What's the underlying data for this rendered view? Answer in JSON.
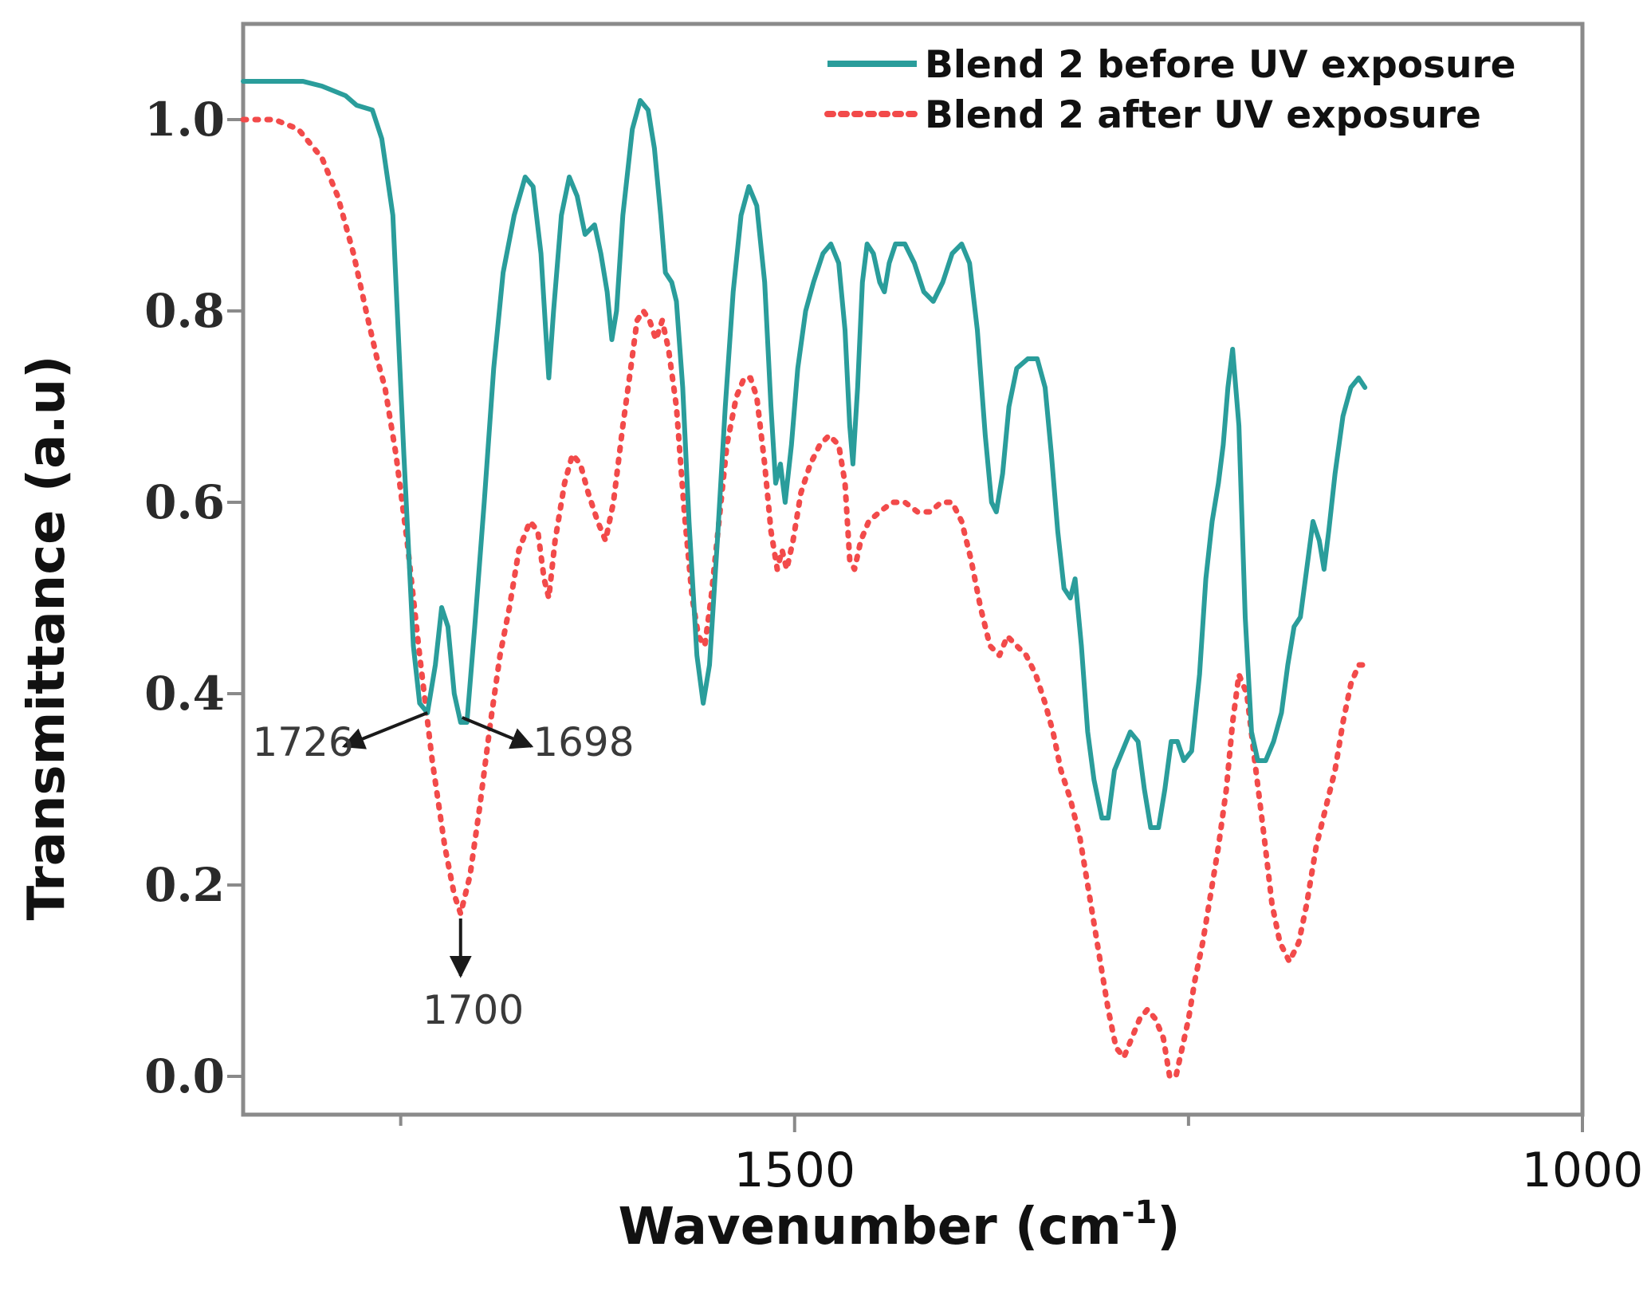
{
  "chart_data": {
    "type": "line",
    "xlabel": "Wavenumber (cm",
    "xlabel_sup": "-1",
    "xlabel_close": ")",
    "ylabel": "Transmittance (a.u)",
    "xlim": [
      1850,
      1000
    ],
    "ylim": [
      -0.04,
      1.1
    ],
    "x_reversed": true,
    "x_ticks": [
      {
        "value": 1500,
        "label": "1500"
      },
      {
        "value": 1000,
        "label": "1000"
      }
    ],
    "x_minor_ticks": [
      1750,
      1250
    ],
    "y_ticks": [
      {
        "value": 0.0,
        "label": "0.0"
      },
      {
        "value": 0.2,
        "label": "0.2"
      },
      {
        "value": 0.4,
        "label": "0.4"
      },
      {
        "value": 0.6,
        "label": "0.6"
      },
      {
        "value": 0.8,
        "label": "0.8"
      },
      {
        "value": 1.0,
        "label": "1.0"
      }
    ],
    "legend_position": "top-right",
    "series": [
      {
        "name": "Blend 2 before UV exposure",
        "color": "#2a9d9b",
        "style": "solid",
        "points": [
          [
            1850,
            1.04
          ],
          [
            1830,
            1.04
          ],
          [
            1812,
            1.04
          ],
          [
            1800,
            1.035
          ],
          [
            1785,
            1.025
          ],
          [
            1778,
            1.015
          ],
          [
            1768,
            1.01
          ],
          [
            1762,
            0.98
          ],
          [
            1755,
            0.9
          ],
          [
            1748,
            0.65
          ],
          [
            1742,
            0.45
          ],
          [
            1738,
            0.39
          ],
          [
            1733,
            0.38
          ],
          [
            1728,
            0.43
          ],
          [
            1724,
            0.49
          ],
          [
            1720,
            0.47
          ],
          [
            1716,
            0.4
          ],
          [
            1712,
            0.37
          ],
          [
            1708,
            0.37
          ],
          [
            1703,
            0.47
          ],
          [
            1697,
            0.6
          ],
          [
            1691,
            0.74
          ],
          [
            1685,
            0.84
          ],
          [
            1678,
            0.9
          ],
          [
            1671,
            0.94
          ],
          [
            1666,
            0.93
          ],
          [
            1661,
            0.86
          ],
          [
            1658,
            0.78
          ],
          [
            1656,
            0.73
          ],
          [
            1653,
            0.8
          ],
          [
            1648,
            0.9
          ],
          [
            1643,
            0.94
          ],
          [
            1638,
            0.92
          ],
          [
            1633,
            0.88
          ],
          [
            1627,
            0.89
          ],
          [
            1623,
            0.86
          ],
          [
            1619,
            0.82
          ],
          [
            1616,
            0.77
          ],
          [
            1613,
            0.8
          ],
          [
            1609,
            0.9
          ],
          [
            1603,
            0.99
          ],
          [
            1598,
            1.02
          ],
          [
            1593,
            1.01
          ],
          [
            1589,
            0.97
          ],
          [
            1585,
            0.9
          ],
          [
            1582,
            0.84
          ],
          [
            1578,
            0.83
          ],
          [
            1575,
            0.81
          ],
          [
            1571,
            0.72
          ],
          [
            1567,
            0.58
          ],
          [
            1562,
            0.44
          ],
          [
            1558,
            0.39
          ],
          [
            1554,
            0.43
          ],
          [
            1549,
            0.56
          ],
          [
            1544,
            0.7
          ],
          [
            1539,
            0.82
          ],
          [
            1534,
            0.9
          ],
          [
            1529,
            0.93
          ],
          [
            1524,
            0.91
          ],
          [
            1519,
            0.83
          ],
          [
            1515,
            0.7
          ],
          [
            1512,
            0.62
          ],
          [
            1509,
            0.64
          ],
          [
            1506,
            0.6
          ],
          [
            1502,
            0.66
          ],
          [
            1498,
            0.74
          ],
          [
            1493,
            0.8
          ],
          [
            1488,
            0.83
          ],
          [
            1482,
            0.86
          ],
          [
            1477,
            0.87
          ],
          [
            1472,
            0.85
          ],
          [
            1468,
            0.78
          ],
          [
            1465,
            0.68
          ],
          [
            1463,
            0.64
          ],
          [
            1460,
            0.72
          ],
          [
            1457,
            0.83
          ],
          [
            1454,
            0.87
          ],
          [
            1450,
            0.86
          ],
          [
            1446,
            0.83
          ],
          [
            1443,
            0.82
          ],
          [
            1440,
            0.85
          ],
          [
            1436,
            0.87
          ],
          [
            1430,
            0.87
          ],
          [
            1424,
            0.85
          ],
          [
            1418,
            0.82
          ],
          [
            1412,
            0.81
          ],
          [
            1406,
            0.83
          ],
          [
            1400,
            0.86
          ],
          [
            1394,
            0.87
          ],
          [
            1389,
            0.85
          ],
          [
            1384,
            0.78
          ],
          [
            1379,
            0.67
          ],
          [
            1375,
            0.6
          ],
          [
            1372,
            0.59
          ],
          [
            1368,
            0.63
          ],
          [
            1364,
            0.7
          ],
          [
            1359,
            0.74
          ],
          [
            1352,
            0.75
          ],
          [
            1346,
            0.75
          ],
          [
            1341,
            0.72
          ],
          [
            1337,
            0.65
          ],
          [
            1333,
            0.57
          ],
          [
            1329,
            0.51
          ],
          [
            1325,
            0.5
          ],
          [
            1322,
            0.52
          ],
          [
            1318,
            0.45
          ],
          [
            1314,
            0.36
          ],
          [
            1310,
            0.31
          ],
          [
            1305,
            0.27
          ],
          [
            1301,
            0.27
          ],
          [
            1297,
            0.32
          ],
          [
            1292,
            0.34
          ],
          [
            1287,
            0.36
          ],
          [
            1282,
            0.35
          ],
          [
            1278,
            0.3
          ],
          [
            1274,
            0.26
          ],
          [
            1269,
            0.26
          ],
          [
            1265,
            0.3
          ],
          [
            1261,
            0.35
          ],
          [
            1257,
            0.35
          ],
          [
            1253,
            0.33
          ],
          [
            1248,
            0.34
          ],
          [
            1243,
            0.42
          ],
          [
            1239,
            0.52
          ],
          [
            1235,
            0.58
          ],
          [
            1231,
            0.62
          ],
          [
            1228,
            0.66
          ],
          [
            1225,
            0.72
          ],
          [
            1222,
            0.76
          ],
          [
            1218,
            0.68
          ],
          [
            1214,
            0.48
          ],
          [
            1210,
            0.36
          ],
          [
            1206,
            0.33
          ],
          [
            1201,
            0.33
          ],
          [
            1196,
            0.35
          ],
          [
            1191,
            0.38
          ],
          [
            1187,
            0.43
          ],
          [
            1183,
            0.47
          ],
          [
            1179,
            0.48
          ],
          [
            1175,
            0.53
          ],
          [
            1171,
            0.58
          ],
          [
            1167,
            0.56
          ],
          [
            1164,
            0.53
          ],
          [
            1161,
            0.57
          ],
          [
            1157,
            0.63
          ],
          [
            1152,
            0.69
          ],
          [
            1147,
            0.72
          ],
          [
            1142,
            0.73
          ],
          [
            1138,
            0.72
          ]
        ]
      },
      {
        "name": "Blend 2 after UV exposure",
        "color": "#f24a4a",
        "style": "dotted",
        "points": [
          [
            1850,
            1.0
          ],
          [
            1830,
            1.0
          ],
          [
            1815,
            0.99
          ],
          [
            1800,
            0.96
          ],
          [
            1790,
            0.92
          ],
          [
            1780,
            0.86
          ],
          [
            1772,
            0.8
          ],
          [
            1765,
            0.75
          ],
          [
            1760,
            0.72
          ],
          [
            1753,
            0.65
          ],
          [
            1746,
            0.56
          ],
          [
            1738,
            0.44
          ],
          [
            1730,
            0.33
          ],
          [
            1722,
            0.24
          ],
          [
            1716,
            0.19
          ],
          [
            1712,
            0.17
          ],
          [
            1706,
            0.21
          ],
          [
            1700,
            0.28
          ],
          [
            1693,
            0.37
          ],
          [
            1687,
            0.44
          ],
          [
            1681,
            0.49
          ],
          [
            1675,
            0.55
          ],
          [
            1668,
            0.58
          ],
          [
            1663,
            0.57
          ],
          [
            1659,
            0.52
          ],
          [
            1656,
            0.5
          ],
          [
            1652,
            0.56
          ],
          [
            1646,
            0.62
          ],
          [
            1641,
            0.65
          ],
          [
            1636,
            0.64
          ],
          [
            1631,
            0.61
          ],
          [
            1625,
            0.58
          ],
          [
            1620,
            0.56
          ],
          [
            1615,
            0.6
          ],
          [
            1609,
            0.68
          ],
          [
            1604,
            0.74
          ],
          [
            1600,
            0.79
          ],
          [
            1596,
            0.8
          ],
          [
            1592,
            0.79
          ],
          [
            1588,
            0.77
          ],
          [
            1584,
            0.79
          ],
          [
            1580,
            0.76
          ],
          [
            1575,
            0.7
          ],
          [
            1570,
            0.59
          ],
          [
            1565,
            0.5
          ],
          [
            1561,
            0.46
          ],
          [
            1557,
            0.45
          ],
          [
            1553,
            0.5
          ],
          [
            1548,
            0.58
          ],
          [
            1543,
            0.66
          ],
          [
            1537,
            0.71
          ],
          [
            1532,
            0.73
          ],
          [
            1528,
            0.73
          ],
          [
            1524,
            0.71
          ],
          [
            1519,
            0.64
          ],
          [
            1515,
            0.57
          ],
          [
            1511,
            0.53
          ],
          [
            1508,
            0.55
          ],
          [
            1505,
            0.53
          ],
          [
            1501,
            0.56
          ],
          [
            1496,
            0.61
          ],
          [
            1490,
            0.64
          ],
          [
            1484,
            0.66
          ],
          [
            1478,
            0.67
          ],
          [
            1472,
            0.66
          ],
          [
            1468,
            0.62
          ],
          [
            1465,
            0.54
          ],
          [
            1462,
            0.53
          ],
          [
            1458,
            0.56
          ],
          [
            1453,
            0.58
          ],
          [
            1446,
            0.59
          ],
          [
            1438,
            0.6
          ],
          [
            1430,
            0.6
          ],
          [
            1422,
            0.59
          ],
          [
            1414,
            0.59
          ],
          [
            1407,
            0.6
          ],
          [
            1400,
            0.6
          ],
          [
            1394,
            0.58
          ],
          [
            1388,
            0.54
          ],
          [
            1382,
            0.49
          ],
          [
            1376,
            0.45
          ],
          [
            1370,
            0.44
          ],
          [
            1365,
            0.46
          ],
          [
            1359,
            0.45
          ],
          [
            1353,
            0.44
          ],
          [
            1347,
            0.42
          ],
          [
            1341,
            0.39
          ],
          [
            1336,
            0.36
          ],
          [
            1331,
            0.32
          ],
          [
            1325,
            0.29
          ],
          [
            1319,
            0.25
          ],
          [
            1313,
            0.19
          ],
          [
            1307,
            0.13
          ],
          [
            1301,
            0.07
          ],
          [
            1296,
            0.03
          ],
          [
            1291,
            0.02
          ],
          [
            1286,
            0.04
          ],
          [
            1281,
            0.06
          ],
          [
            1276,
            0.07
          ],
          [
            1271,
            0.06
          ],
          [
            1266,
            0.04
          ],
          [
            1262,
            0.0
          ],
          [
            1258,
            0.0
          ],
          [
            1254,
            0.03
          ],
          [
            1250,
            0.06
          ],
          [
            1246,
            0.1
          ],
          [
            1241,
            0.14
          ],
          [
            1236,
            0.19
          ],
          [
            1231,
            0.24
          ],
          [
            1226,
            0.3
          ],
          [
            1222,
            0.37
          ],
          [
            1218,
            0.42
          ],
          [
            1213,
            0.4
          ],
          [
            1208,
            0.33
          ],
          [
            1202,
            0.25
          ],
          [
            1197,
            0.18
          ],
          [
            1192,
            0.14
          ],
          [
            1186,
            0.12
          ],
          [
            1180,
            0.14
          ],
          [
            1175,
            0.18
          ],
          [
            1169,
            0.24
          ],
          [
            1163,
            0.28
          ],
          [
            1157,
            0.32
          ],
          [
            1152,
            0.37
          ],
          [
            1147,
            0.41
          ],
          [
            1142,
            0.43
          ],
          [
            1138,
            0.43
          ]
        ]
      }
    ],
    "annotations": [
      {
        "label": "1726",
        "series": 0,
        "tip": [
          1733,
          0.38
        ],
        "arrow_to": [
          1786,
          0.345
        ],
        "label_at": [
          1812,
          0.335
        ],
        "anchor": "middle"
      },
      {
        "label": "1698",
        "series": 0,
        "tip": [
          1711,
          0.375
        ],
        "arrow_to": [
          1667,
          0.345
        ],
        "label_at": [
          1634,
          0.335
        ],
        "anchor": "middle"
      },
      {
        "label": "1700",
        "series": 1,
        "tip": [
          1712,
          0.165
        ],
        "arrow_to": [
          1712,
          0.105
        ],
        "label_at": [
          1704,
          0.055
        ],
        "anchor": "middle"
      }
    ]
  }
}
